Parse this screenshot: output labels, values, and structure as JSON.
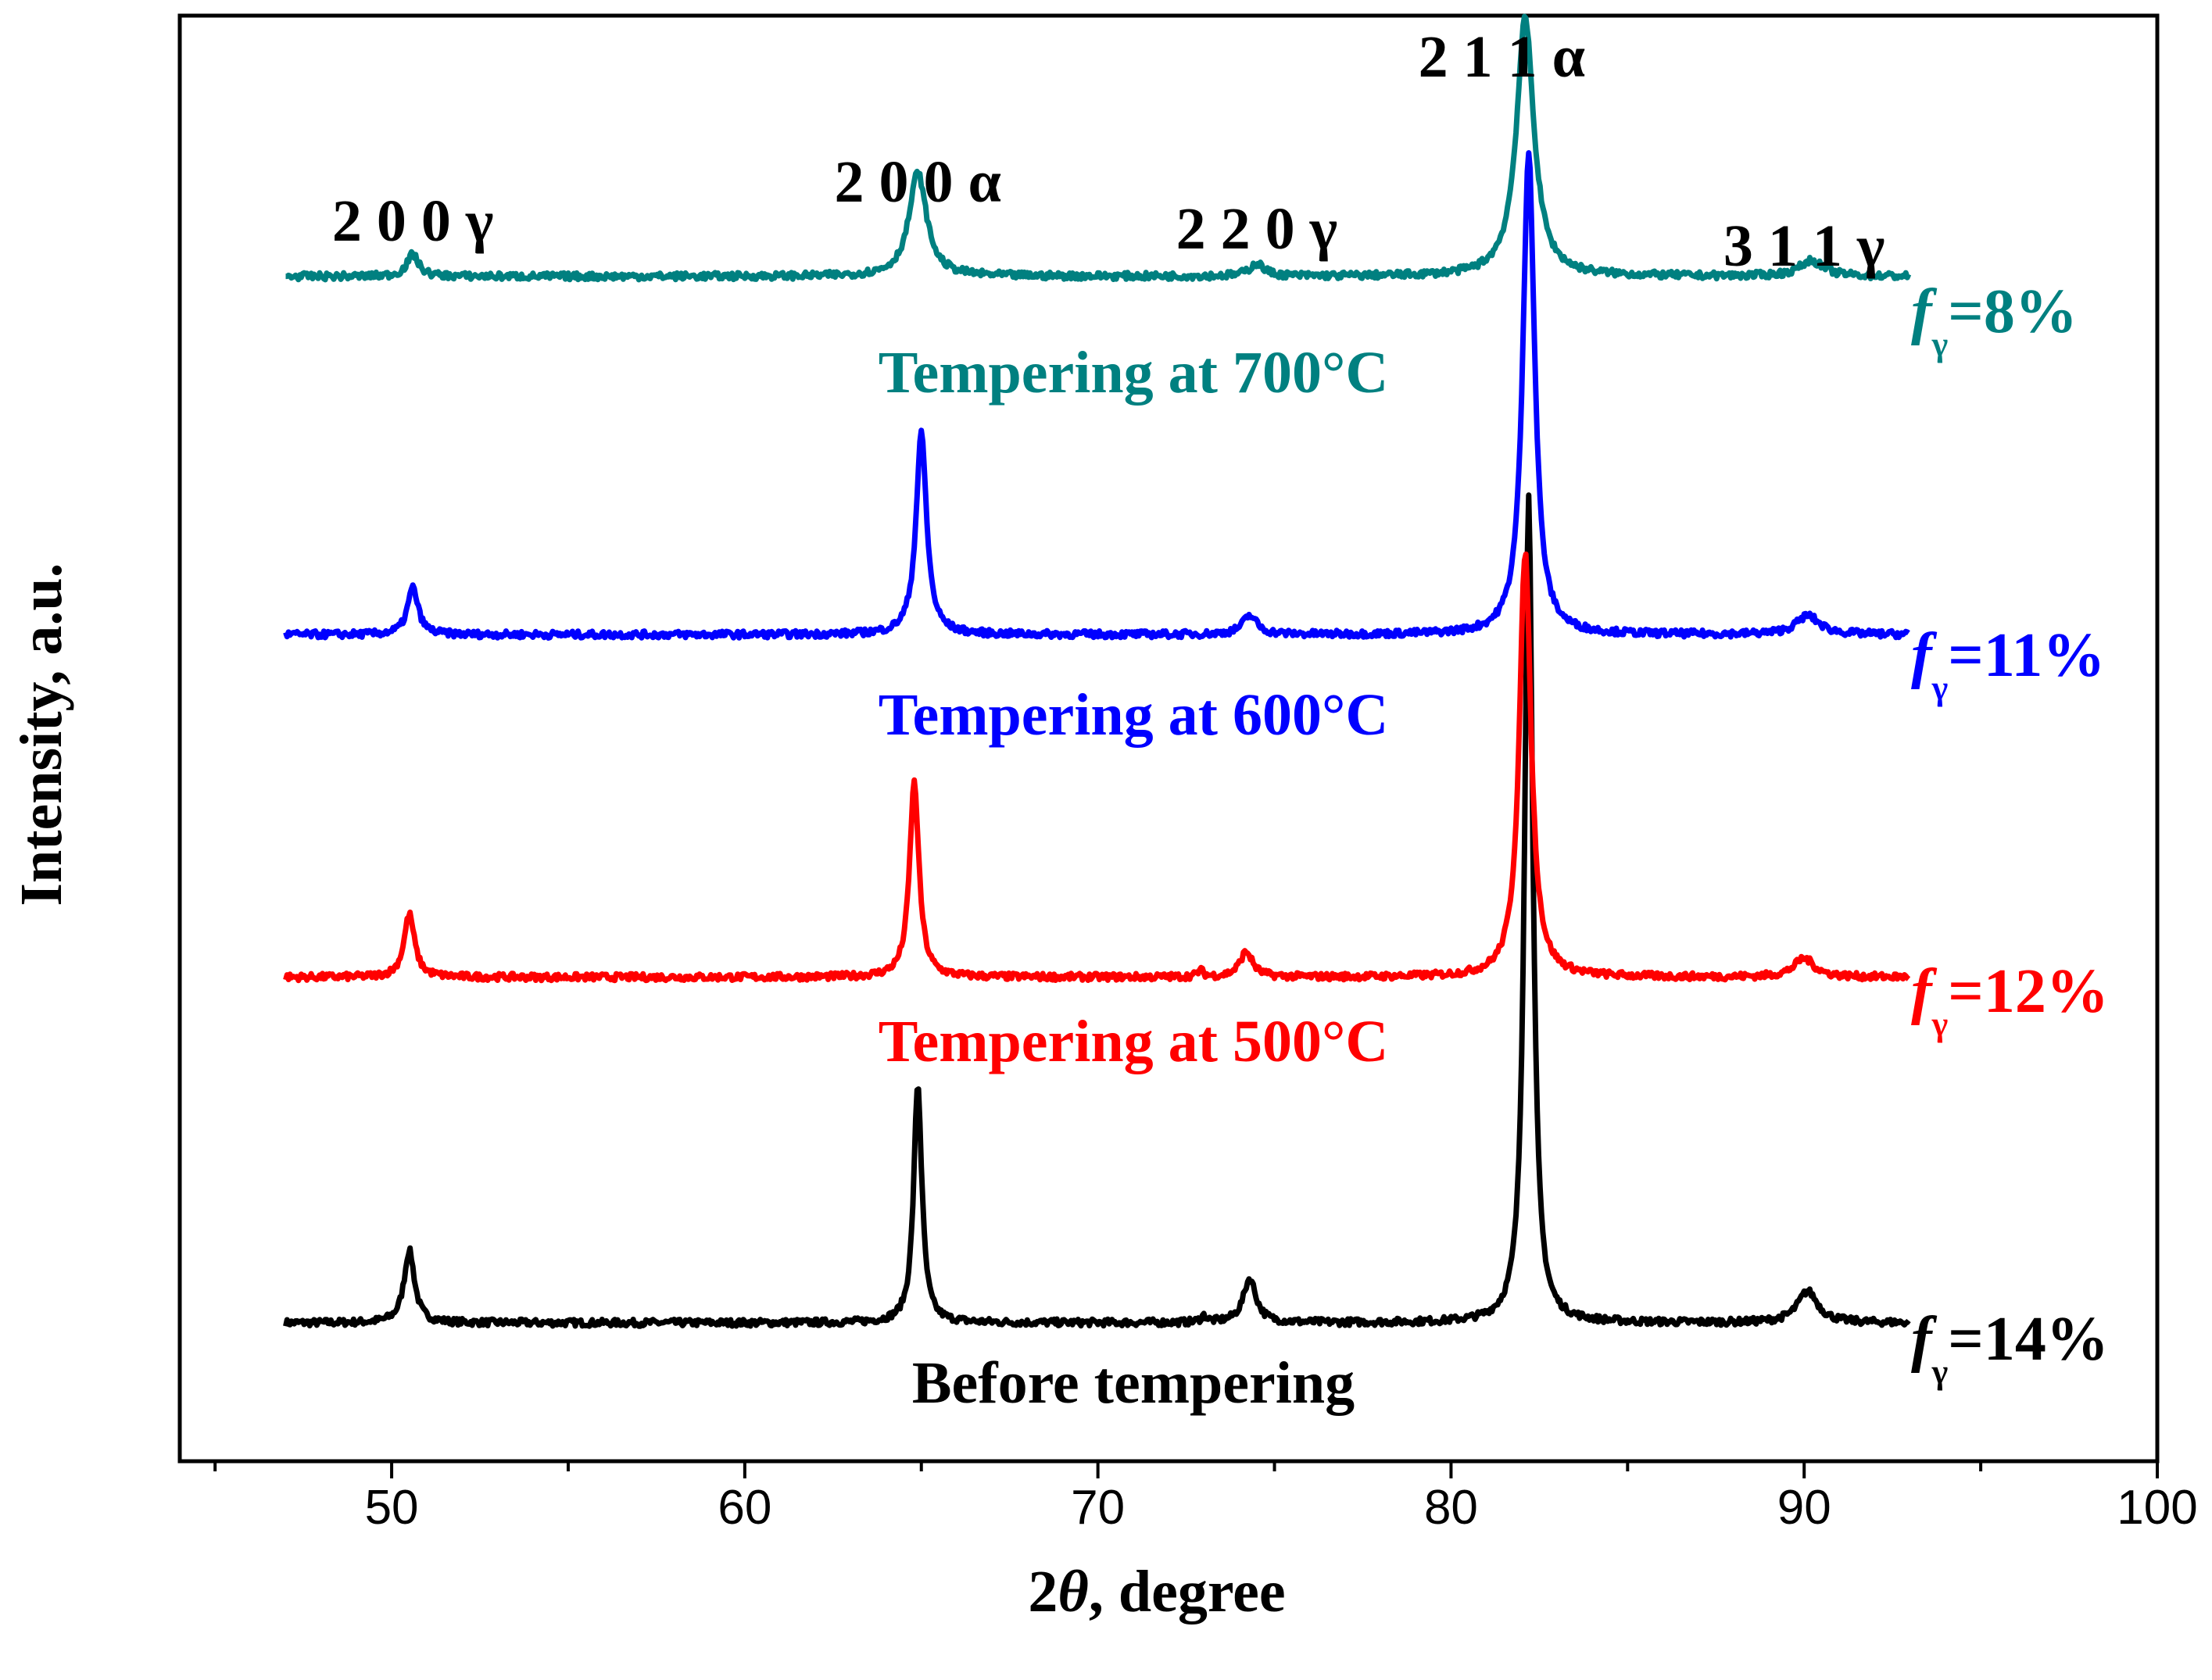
{
  "chart_data": {
    "type": "line",
    "title": "",
    "xlabel_prefix": "2",
    "xlabel_symbol": "θ",
    "xlabel_suffix": ", degree",
    "ylabel": "Intensity, a.u.",
    "xlim": [
      44,
      100
    ],
    "ylim": [
      0,
      4.6
    ],
    "x_ticks": [
      50,
      60,
      70,
      80,
      90,
      100
    ],
    "x_tick_labels": [
      "50",
      "60",
      "70",
      "80",
      "90",
      "100"
    ],
    "y_ticks_shown": false,
    "peak_labels": [
      {
        "text": "2 0 0 γ",
        "x": 50.6
      },
      {
        "text": "2 0 0 α",
        "x": 64.9
      },
      {
        "text": "2 2 0 γ",
        "x": 74.5
      },
      {
        "text": "2 1 1 α",
        "x": 82.1
      },
      {
        "text": "3 1 1 γ",
        "x": 90.0
      }
    ],
    "series": [
      {
        "name": "Before tempering",
        "color": "#000000",
        "baseline": 0.44,
        "fraction_label": {
          "var": "f",
          "sub": "γ",
          "text": "=14%"
        },
        "peaks": [
          {
            "x": 50.5,
            "height": 0.23,
            "width": 0.18
          },
          {
            "x": 64.9,
            "height": 0.76,
            "width": 0.14
          },
          {
            "x": 73.0,
            "height": 0.02,
            "width": 0.1
          },
          {
            "x": 74.3,
            "height": 0.14,
            "width": 0.22
          },
          {
            "x": 82.2,
            "height": 2.63,
            "width": 0.14
          },
          {
            "x": 90.1,
            "height": 0.1,
            "width": 0.35
          }
        ]
      },
      {
        "name": "Tempering at 500°C",
        "color": "#ff0000",
        "baseline": 1.54,
        "fraction_label": {
          "var": "f",
          "sub": "γ",
          "text": "=12%"
        },
        "peaks": [
          {
            "x": 50.5,
            "height": 0.2,
            "width": 0.18
          },
          {
            "x": 64.8,
            "height": 0.62,
            "width": 0.16
          },
          {
            "x": 72.9,
            "height": 0.02,
            "width": 0.1
          },
          {
            "x": 74.2,
            "height": 0.08,
            "width": 0.22
          },
          {
            "x": 82.1,
            "height": 1.35,
            "width": 0.2
          },
          {
            "x": 90.0,
            "height": 0.06,
            "width": 0.35
          }
        ]
      },
      {
        "name": "Tempering at 600°C",
        "color": "#0000ff",
        "baseline": 2.63,
        "fraction_label": {
          "var": "f",
          "sub": "γ",
          "text": "=11%"
        },
        "peaks": [
          {
            "x": 50.6,
            "height": 0.15,
            "width": 0.18
          },
          {
            "x": 65.0,
            "height": 0.64,
            "width": 0.18
          },
          {
            "x": 74.3,
            "height": 0.06,
            "width": 0.25
          },
          {
            "x": 82.2,
            "height": 1.54,
            "width": 0.2
          },
          {
            "x": 90.1,
            "height": 0.06,
            "width": 0.4
          }
        ]
      },
      {
        "name": "Tempering at 700°C",
        "color": "#008080",
        "baseline": 3.77,
        "fraction_label": {
          "var": "f",
          "sub": "γ",
          "text": "=8%"
        },
        "peaks": [
          {
            "x": 50.6,
            "height": 0.07,
            "width": 0.2
          },
          {
            "x": 64.9,
            "height": 0.33,
            "width": 0.3
          },
          {
            "x": 74.5,
            "height": 0.04,
            "width": 0.25
          },
          {
            "x": 82.1,
            "height": 0.82,
            "width": 0.3
          },
          {
            "x": 90.2,
            "height": 0.05,
            "width": 0.4
          }
        ]
      }
    ]
  }
}
